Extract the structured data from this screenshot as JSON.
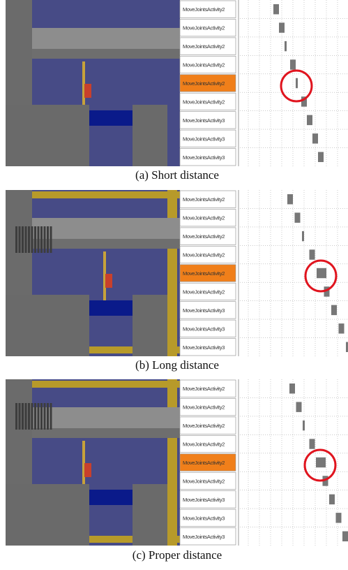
{
  "panels": [
    {
      "caption": "(a) Short distance",
      "highlighted": 4,
      "rows": [
        "MoveJointsActivity2",
        "MoveJointsActivity2",
        "MoveJointsActivity2",
        "MoveJointsActivity2",
        "MoveJointsActivity2",
        "MoveJointsActivity2",
        "MoveJointsActivity3",
        "MoveJointsActivity3",
        "MoveJointsActivity3"
      ]
    },
    {
      "caption": "(b) Long distance",
      "highlighted": 4,
      "rows": [
        "MoveJointsActivity2",
        "MoveJointsActivity2",
        "MoveJointsActivity2",
        "MoveJointsActivity2",
        "MoveJointsActivity2",
        "MoveJointsActivity2",
        "MoveJointsActivity3",
        "MoveJointsActivity3",
        "MoveJointsActivity3"
      ]
    },
    {
      "caption": "(c) Proper distance",
      "highlighted": 4,
      "rows": [
        "MoveJointsActivity2",
        "MoveJointsActivity2",
        "MoveJointsActivity2",
        "MoveJointsActivity2",
        "MoveJointsActivity2",
        "MoveJointsActivity2",
        "MoveJointsActivity3",
        "MoveJointsActivity3",
        "MoveJointsActivity3"
      ]
    }
  ]
}
